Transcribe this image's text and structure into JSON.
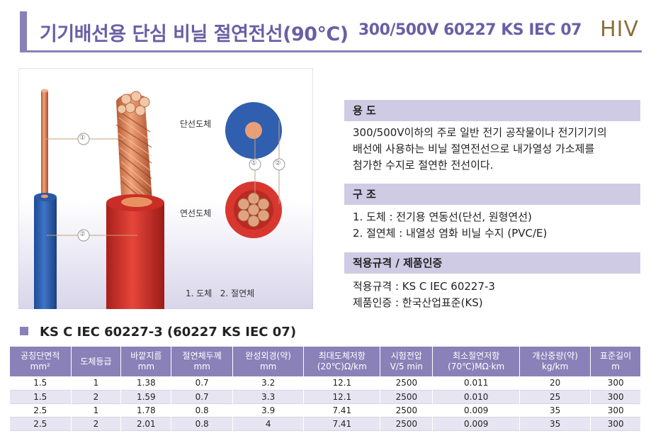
{
  "header": {
    "title": "기기배선용 단심 비닐 절연전선(90℃)",
    "code": "300/500V 60227 KS IEC 07",
    "logo": "HIV"
  },
  "illustration": {
    "solid_label": "단선도체",
    "stranded_label": "연선도체",
    "callout_1": "①",
    "callout_2": "②",
    "legend": "1. 도체   2. 절연체"
  },
  "colors": {
    "accent": "#8a81b8",
    "section_bg": "#cfcbe4",
    "blue_insulation": "#2f5fae",
    "red_insulation": "#d8372f",
    "copper": "#d98a5c"
  },
  "usage": {
    "heading": "용 도",
    "lines": [
      "300/500V이하의 주로 일반 전기 공작물이나 전기기기의",
      "배선에 사용하는 비닐 절연전선으로 내가열성 가소제를",
      "첨가한 수지로 절연한 전선이다."
    ]
  },
  "structure": {
    "heading": "구 조",
    "lines": [
      "1. 도체 : 전기용 연동선(단선, 원형연선)",
      "2. 절연체 : 내열성 염화 비닐 수지 (PVC/E)"
    ]
  },
  "standard": {
    "heading": "적용규격 / 제품인증",
    "lines": [
      "적용규격 : KS C IEC 60227-3",
      "제품인증 : 한국산업표준(KS)"
    ]
  },
  "table": {
    "title": "KS C IEC 60227-3 (60227 KS IEC 07)",
    "headers": [
      [
        "공칭단면적",
        "mm²"
      ],
      [
        "도체등급",
        ""
      ],
      [
        "바깥지름",
        "mm"
      ],
      [
        "절연체두께",
        "mm"
      ],
      [
        "완성외경(약)",
        "mm"
      ],
      [
        "최대도체저항",
        "(20℃)Ω/km"
      ],
      [
        "시험전압",
        "V/5 min"
      ],
      [
        "최소절연저항",
        "(70℃)MΩ·km"
      ],
      [
        "개산중량(약)",
        "kg/km"
      ],
      [
        "표준길이",
        "m"
      ]
    ],
    "rows": [
      [
        "1.5",
        "1",
        "1.38",
        "0.7",
        "3.2",
        "12.1",
        "2500",
        "0.011",
        "20",
        "300"
      ],
      [
        "1.5",
        "2",
        "1.59",
        "0.7",
        "3.3",
        "12.1",
        "2500",
        "0.010",
        "25",
        "300"
      ],
      [
        "2.5",
        "1",
        "1.78",
        "0.8",
        "3.9",
        "7.41",
        "2500",
        "0.009",
        "35",
        "300"
      ],
      [
        "2.5",
        "2",
        "2.01",
        "0.8",
        "4",
        "7.41",
        "2500",
        "0.009",
        "35",
        "300"
      ]
    ]
  }
}
